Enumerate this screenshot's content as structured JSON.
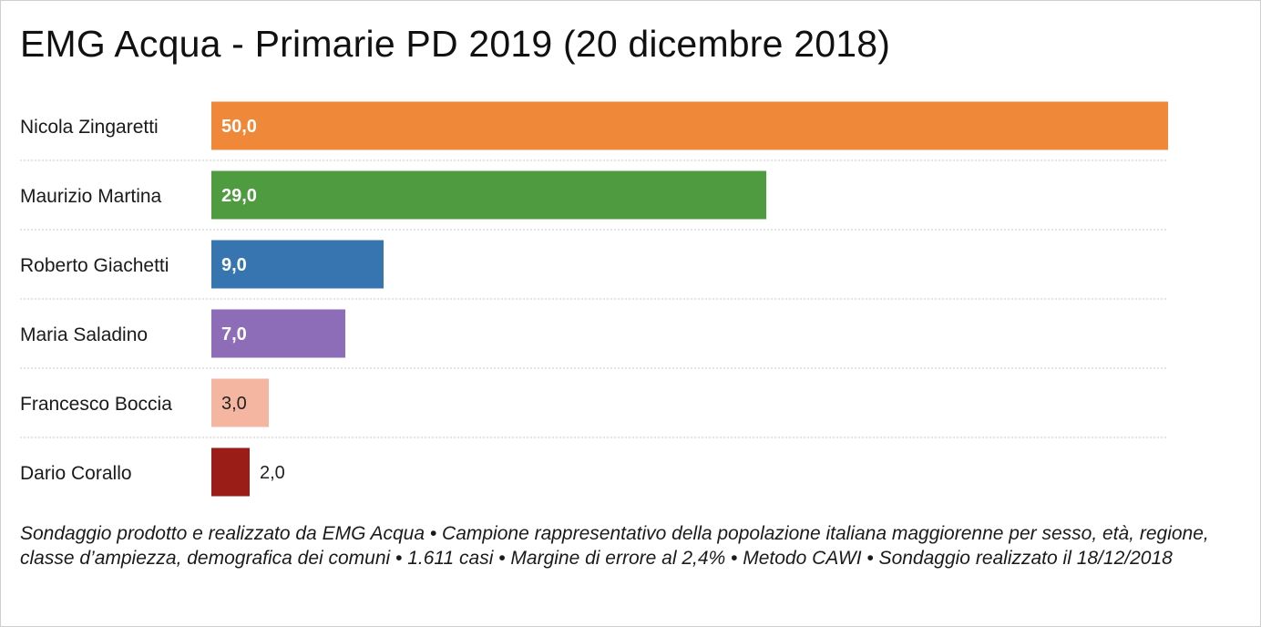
{
  "title": "EMG Acqua - Primarie PD 2019 (20 dicembre 2018)",
  "note": "Sondaggio prodotto e realizzato da EMG Acqua • Campione rappresentativo della popolazione italiana maggiorenne per sesso, età, regione, classe d’ampiezza, demografica dei comuni • 1.611 casi • Margine di errore al 2,4% • Metodo CAWI • Sondaggio realizzato il 18/12/2018",
  "chart_data": {
    "type": "bar",
    "orientation": "horizontal",
    "categories": [
      "Nicola Zingaretti",
      "Maurizio Martina",
      "Roberto Giachetti",
      "Maria Saladino",
      "Francesco Boccia",
      "Dario Corallo"
    ],
    "values": [
      50.0,
      29.0,
      9.0,
      7.0,
      3.0,
      2.0
    ],
    "value_labels": [
      "50,0",
      "29,0",
      "9,0",
      "7,0",
      "3,0",
      "2,0"
    ],
    "colors": [
      "#f0883a",
      "#4f9b40",
      "#3675b0",
      "#8d6cb8",
      "#f5b6a1",
      "#9a1d18"
    ],
    "label_colors": [
      "#ffffff",
      "#ffffff",
      "#ffffff",
      "#ffffff",
      "#222222",
      "#222222"
    ],
    "xlim": [
      0,
      50
    ],
    "grid": false,
    "row_separators": "dotted"
  }
}
